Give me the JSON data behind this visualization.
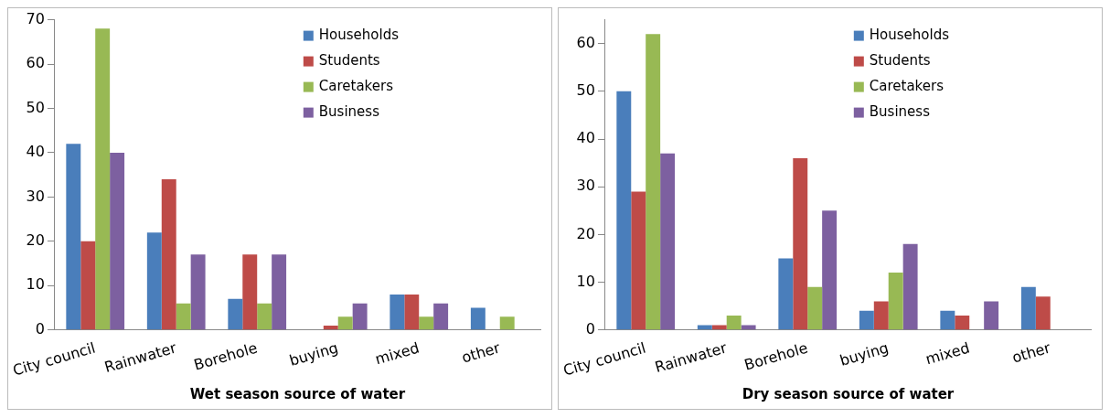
{
  "chart_data": [
    {
      "type": "bar",
      "xlabel": "Wet season source of water",
      "categories": [
        "City council",
        "Rainwater",
        "Borehole",
        "buying",
        "mixed",
        "other"
      ],
      "series": [
        {
          "name": "Households",
          "color": "#4a7ebb",
          "values": [
            42,
            22,
            7,
            0,
            8,
            5
          ]
        },
        {
          "name": "Students",
          "color": "#be4b48",
          "values": [
            20,
            34,
            17,
            1,
            8,
            0
          ]
        },
        {
          "name": "Caretakers",
          "color": "#98b954",
          "values": [
            68,
            6,
            6,
            3,
            3,
            3
          ]
        },
        {
          "name": "Business",
          "color": "#7d60a0",
          "values": [
            40,
            17,
            17,
            6,
            6,
            0
          ]
        }
      ],
      "ylim": [
        0,
        70
      ],
      "yticks": [
        0,
        10,
        20,
        30,
        40,
        50,
        60,
        70
      ],
      "grid": false,
      "legend": "top right"
    },
    {
      "type": "bar",
      "xlabel": "Dry season source of water",
      "categories": [
        "City council",
        "Rainwater",
        "Borehole",
        "buying",
        "mixed",
        "other"
      ],
      "series": [
        {
          "name": "Households",
          "color": "#4a7ebb",
          "values": [
            50,
            1,
            15,
            4,
            4,
            9
          ]
        },
        {
          "name": "Students",
          "color": "#be4b48",
          "values": [
            29,
            1,
            36,
            6,
            3,
            7
          ]
        },
        {
          "name": "Caretakers",
          "color": "#98b954",
          "values": [
            62,
            3,
            9,
            12,
            0,
            0
          ]
        },
        {
          "name": "Business",
          "color": "#7d60a0",
          "values": [
            37,
            1,
            25,
            18,
            6,
            0
          ]
        }
      ],
      "ylim": [
        0,
        65
      ],
      "yticks": [
        0,
        10,
        20,
        30,
        40,
        50,
        60
      ],
      "grid": false,
      "legend": "top right"
    }
  ]
}
